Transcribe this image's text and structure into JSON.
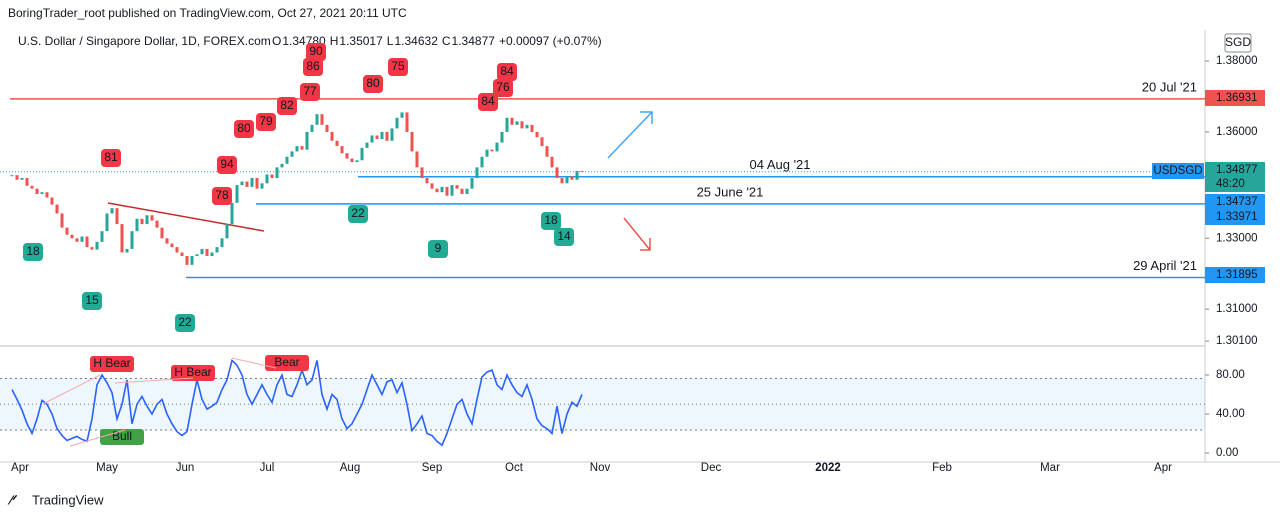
{
  "header": {
    "published": "BoringTrader_root published on TradingView.com, Oct 27, 2021 20:11 UTC",
    "symbol": "U.S. Dollar / Singapore Dollar, 1D, FOREX.com",
    "ohlc": [
      {
        "label": "O",
        "value": "1.34780"
      },
      {
        "label": "H",
        "value": "1.35017"
      },
      {
        "label": "L",
        "value": "1.34632"
      },
      {
        "label": "C",
        "value": "1.34877"
      }
    ],
    "change": "+0.00097 (+0.07%)",
    "currency": "SGD"
  },
  "price": {
    "ylim": [
      1.2999,
      1.38875
    ],
    "yticks": [
      {
        "value": 1.38,
        "label": "1.38000"
      },
      {
        "value": 1.36,
        "label": "1.36000"
      },
      {
        "value": 1.33,
        "label": "1.33000"
      },
      {
        "value": 1.31,
        "label": "1.31000"
      },
      {
        "value": 1.301,
        "label": "1.30100"
      }
    ],
    "closes": [
      1.3478,
      1.3465,
      1.347,
      1.3448,
      1.344,
      1.3425,
      1.343,
      1.3415,
      1.3395,
      1.337,
      1.333,
      1.331,
      1.33,
      1.329,
      1.3305,
      1.3275,
      1.3268,
      1.329,
      1.332,
      1.337,
      1.3385,
      1.334,
      1.326,
      1.327,
      1.332,
      1.3355,
      1.334,
      1.3365,
      1.335,
      1.333,
      1.33,
      1.3285,
      1.3275,
      1.326,
      1.325,
      1.3225,
      1.325,
      1.3255,
      1.327,
      1.325,
      1.326,
      1.3275,
      1.33,
      1.334,
      1.34,
      1.345,
      1.346,
      1.3445,
      1.347,
      1.344,
      1.3455,
      1.348,
      1.347,
      1.35,
      1.351,
      1.353,
      1.3545,
      1.356,
      1.355,
      1.36,
      1.362,
      1.365,
      1.362,
      1.36,
      1.3575,
      1.356,
      1.354,
      1.3525,
      1.3515,
      1.352,
      1.3555,
      1.357,
      1.359,
      1.358,
      1.36,
      1.3575,
      1.361,
      1.364,
      1.3655,
      1.36,
      1.3545,
      1.35,
      1.347,
      1.3455,
      1.344,
      1.343,
      1.3445,
      1.342,
      1.345,
      1.344,
      1.3425,
      1.344,
      1.347,
      1.35,
      1.353,
      1.355,
      1.3545,
      1.357,
      1.36,
      1.364,
      1.362,
      1.363,
      1.361,
      1.362,
      1.36,
      1.3585,
      1.356,
      1.353,
      1.35,
      1.347,
      1.3455,
      1.3475,
      1.3465,
      1.349,
      1.34877
    ],
    "up_color": "#26a69a",
    "down_color": "#ef5350",
    "last": {
      "symbol": "USDSGD",
      "value": 1.34877,
      "countdown": "48:20",
      "color": "#2196f3"
    },
    "levels": [
      {
        "label": "20 Jul '21",
        "value": 1.36931,
        "color": "#ef5350"
      },
      {
        "label": "04 Aug '21",
        "value": 1.34737,
        "color": "#2196f3"
      },
      {
        "label": "25 June '21",
        "value": 1.33971,
        "color": "#2196f3"
      },
      {
        "label": "29 April '21",
        "value": 1.31895,
        "color": "#2196f3"
      }
    ],
    "red_tags": [
      "81",
      "94",
      "78",
      "80",
      "79",
      "82",
      "86",
      "90",
      "77",
      "80",
      "75",
      "84",
      "76",
      "84"
    ],
    "green_tags": [
      "18",
      "15",
      "22",
      "22",
      "9",
      "18",
      "14"
    ]
  },
  "oscillator": {
    "ylim": [
      -9.2,
      107.7
    ],
    "yticks": [
      {
        "value": 80,
        "label": "80.00"
      },
      {
        "value": 40,
        "label": "40.00"
      },
      {
        "value": 0,
        "label": "0.00"
      }
    ],
    "band": [
      76.4,
      23.6
    ],
    "mid": 50,
    "color": "#2962ff",
    "values": [
      65,
      55,
      44,
      30,
      20,
      35,
      54,
      50,
      40,
      25,
      18,
      13,
      15,
      17,
      14,
      12,
      35,
      70,
      80,
      72,
      62,
      35,
      50,
      75,
      30,
      50,
      58,
      48,
      40,
      50,
      55,
      40,
      30,
      22,
      18,
      22,
      50,
      75,
      55,
      45,
      48,
      52,
      65,
      75,
      95,
      90,
      80,
      60,
      50,
      60,
      70,
      60,
      52,
      70,
      80,
      60,
      58,
      70,
      85,
      70,
      75,
      95,
      60,
      45,
      60,
      55,
      35,
      25,
      30,
      40,
      50,
      65,
      80,
      70,
      60,
      73,
      75,
      62,
      72,
      50,
      23,
      30,
      38,
      20,
      18,
      12,
      8,
      20,
      35,
      50,
      55,
      40,
      30,
      55,
      78,
      83,
      85,
      70,
      65,
      80,
      70,
      62,
      58,
      70,
      55,
      35,
      28,
      25,
      20,
      48,
      20,
      40,
      52,
      48,
      60
    ],
    "tags": [
      "H Bear",
      "H Bear",
      "Bear",
      "Bull"
    ]
  },
  "time_axis": [
    "Apr",
    "May",
    "Jun",
    "Jul",
    "Aug",
    "Sep",
    "Oct",
    "Nov",
    "Dec",
    "2022",
    "Feb",
    "Mar",
    "Apr"
  ],
  "footer": "TradingView"
}
